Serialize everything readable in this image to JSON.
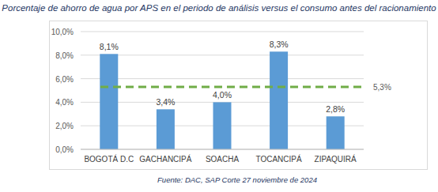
{
  "chart_data": {
    "type": "bar",
    "title": "Porcentaje de ahorro de agua por APS en el periodo de análisis versus el consumo antes del racionamiento",
    "source": "Fuente: DAC, SAP Corte 27 noviembre de 2024",
    "categories": [
      "BOGOTÁ D.C",
      "GACHANCIPÁ",
      "SOACHA",
      "TOCANCIPÁ",
      "ZIPAQUIRÁ"
    ],
    "values": [
      8.1,
      3.4,
      4.0,
      8.3,
      2.8
    ],
    "value_labels": [
      "8,1%",
      "3,4%",
      "4,0%",
      "8,3%",
      "2,8%"
    ],
    "color": "#5b9bd5",
    "reference_line": {
      "value": 5.3,
      "label": "5,3%"
    },
    "ylim": [
      0,
      10
    ],
    "yticks": [
      {
        "value": 0,
        "label": "0,0%"
      },
      {
        "value": 2,
        "label": "2,0%"
      },
      {
        "value": 4,
        "label": "4,0%"
      },
      {
        "value": 6,
        "label": "6,0%"
      },
      {
        "value": 8,
        "label": "8,0%"
      },
      {
        "value": 10,
        "label": "10,0%"
      }
    ],
    "grid": true,
    "data_labels": true
  }
}
